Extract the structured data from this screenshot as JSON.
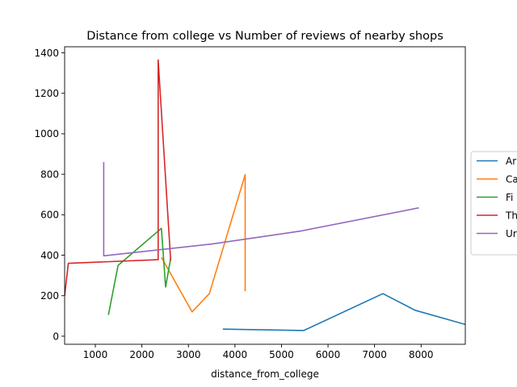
{
  "chart_data": {
    "type": "line",
    "title": "Distance from college vs Number of reviews of nearby shops",
    "xlabel": "distance_from_college",
    "ylabel": "",
    "xlim": [
      340,
      8950
    ],
    "ylim": [
      -40,
      1430
    ],
    "xticks": [
      1000,
      2000,
      3000,
      4000,
      5000,
      6000,
      7000,
      8000
    ],
    "yticks": [
      0,
      200,
      400,
      600,
      800,
      1000,
      1200,
      1400
    ],
    "grid": false,
    "legend_position": "center-right",
    "series": [
      {
        "name": "Ar",
        "color": "#1f77b4",
        "points": [
          [
            3740,
            35
          ],
          [
            5480,
            28
          ],
          [
            7180,
            210
          ],
          [
            7870,
            128
          ],
          [
            8950,
            58
          ]
        ]
      },
      {
        "name": "Ca",
        "color": "#ff7f0e",
        "points": [
          [
            4220,
            222
          ],
          [
            4220,
            798
          ],
          [
            3450,
            210
          ],
          [
            3080,
            120
          ],
          [
            2420,
            390
          ]
        ]
      },
      {
        "name": "Fi",
        "color": "#2ca02c",
        "points": [
          [
            1280,
            105
          ],
          [
            1490,
            350
          ],
          [
            2420,
            533
          ],
          [
            2510,
            243
          ],
          [
            2620,
            385
          ]
        ]
      },
      {
        "name": "Th",
        "color": "#d62728",
        "points": [
          [
            340,
            200
          ],
          [
            420,
            360
          ],
          [
            2350,
            378
          ],
          [
            2350,
            1365
          ],
          [
            2620,
            373
          ]
        ]
      },
      {
        "name": "Ur",
        "color": "#9467bd",
        "points": [
          [
            1180,
            860
          ],
          [
            1180,
            397
          ],
          [
            3500,
            455
          ],
          [
            5430,
            520
          ],
          [
            7950,
            634
          ]
        ]
      }
    ]
  }
}
